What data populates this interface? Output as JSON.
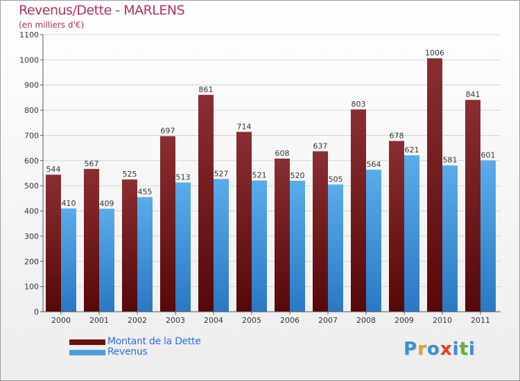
{
  "title": "Revenus/Dette - MARLENS",
  "subtitle": "(en milliers d'€)",
  "colors": {
    "dette": "#7a1f23",
    "revenus": "#4a9ee0",
    "title": "#b03060",
    "legend_text": "#2f6fe0"
  },
  "legend": [
    {
      "label": "Montant de la Dette",
      "color": "#6b0f10"
    },
    {
      "label": "Revenus",
      "color": "#4a9ee0"
    }
  ],
  "logo": {
    "letters": [
      "P",
      "r",
      "o",
      "x",
      "i",
      "t",
      "i"
    ],
    "colors": [
      "#3a8fd8",
      "#e8a020",
      "#3a8fd8",
      "#e84020",
      "#3a8fd8",
      "#60b030",
      "#3a8fd8"
    ]
  },
  "chart_data": {
    "type": "bar",
    "categories": [
      "2000",
      "2001",
      "2002",
      "2003",
      "2004",
      "2005",
      "2006",
      "2007",
      "2008",
      "2009",
      "2010",
      "2011"
    ],
    "series": [
      {
        "name": "Montant de la Dette",
        "values": [
          544,
          567,
          525,
          697,
          861,
          714,
          608,
          637,
          803,
          678,
          1006,
          841
        ]
      },
      {
        "name": "Revenus",
        "values": [
          410,
          409,
          455,
          513,
          527,
          521,
          520,
          505,
          564,
          621,
          581,
          601
        ]
      }
    ],
    "yticks": [
      0,
      100,
      200,
      300,
      400,
      500,
      600,
      700,
      800,
      900,
      1000,
      1100
    ],
    "ylim": [
      0,
      1100
    ],
    "grid": true,
    "legend_position": "bottom-left"
  }
}
